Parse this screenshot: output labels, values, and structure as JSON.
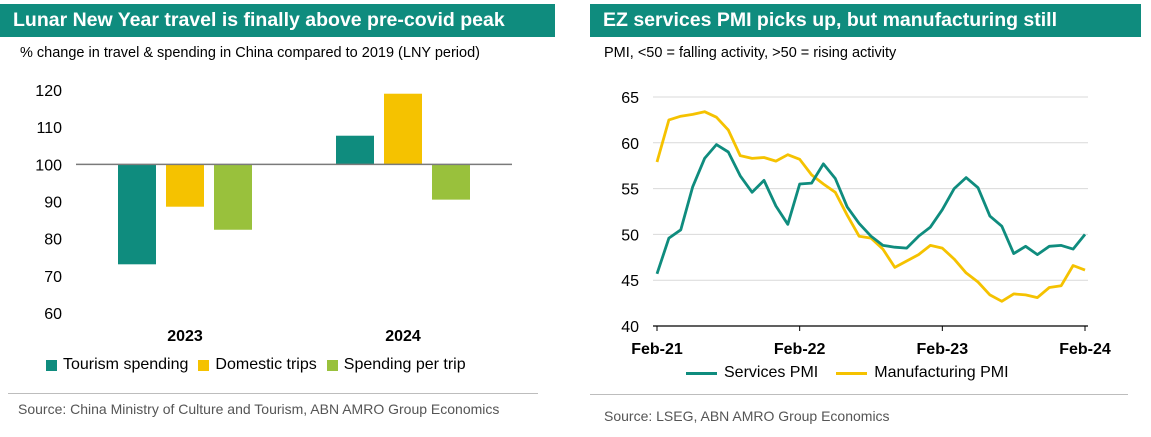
{
  "left": {
    "title": "Lunar New Year travel is finally above pre-covid peak",
    "subtitle": "% change in travel & spending in China compared to 2019 (LNY period)",
    "source": "Source: China Ministry of Culture and Tourism, ABN AMRO Group Economics",
    "colors": {
      "Tourism spending": "#0f8c7e",
      "Domestic trips": "#f5c200",
      "Spending per trip": "#99c13c"
    }
  },
  "right": {
    "title": "EZ services PMI picks up, but manufacturing still",
    "subtitle": "PMI, <50 = falling activity, >50 = rising activity",
    "source": "Source: LSEG, ABN AMRO Group Economics",
    "colors": {
      "Services PMI": "#0f8c7e",
      "Manufacturing PMI": "#f5c200"
    }
  },
  "chart_data": [
    {
      "type": "bar",
      "title": "Lunar New Year travel is finally above pre-covid peak",
      "subtitle": "% change in travel & spending in China compared to 2019 (LNY period)",
      "categories": [
        "2023",
        "2024"
      ],
      "baseline": 100,
      "ylim": [
        60,
        120
      ],
      "yticks": [
        60,
        70,
        80,
        90,
        100,
        110,
        120
      ],
      "grid": false,
      "legend": "bottom",
      "series": [
        {
          "name": "Tourism spending",
          "values": [
            73.1,
            107.7
          ]
        },
        {
          "name": "Domestic trips",
          "values": [
            88.6,
            119.0
          ]
        },
        {
          "name": "Spending per trip",
          "values": [
            82.4,
            90.5
          ]
        }
      ]
    },
    {
      "type": "line",
      "title": "EZ services PMI picks up, but manufacturing still",
      "subtitle": "PMI, <50 = falling activity, >50 = rising activity",
      "x": [
        "2021-02",
        "2021-03",
        "2021-04",
        "2021-05",
        "2021-06",
        "2021-07",
        "2021-08",
        "2021-09",
        "2021-10",
        "2021-11",
        "2021-12",
        "2022-01",
        "2022-02",
        "2022-03",
        "2022-04",
        "2022-05",
        "2022-06",
        "2022-07",
        "2022-08",
        "2022-09",
        "2022-10",
        "2022-11",
        "2022-12",
        "2023-01",
        "2023-02",
        "2023-03",
        "2023-04",
        "2023-05",
        "2023-06",
        "2023-07",
        "2023-08",
        "2023-09",
        "2023-10",
        "2023-11",
        "2023-12",
        "2024-01",
        "2024-02"
      ],
      "xticks": [
        "Feb-21",
        "Feb-22",
        "Feb-23",
        "Feb-24"
      ],
      "ylim": [
        40,
        65
      ],
      "yticks": [
        40,
        45,
        50,
        55,
        60,
        65
      ],
      "grid": true,
      "legend": "bottom",
      "series": [
        {
          "name": "Services PMI",
          "values": [
            45.7,
            49.6,
            50.5,
            55.2,
            58.3,
            59.8,
            59.0,
            56.4,
            54.6,
            55.9,
            53.1,
            51.1,
            55.5,
            55.6,
            57.7,
            56.1,
            53.0,
            51.2,
            49.8,
            48.8,
            48.6,
            48.5,
            49.8,
            50.8,
            52.7,
            55.0,
            56.2,
            55.1,
            52.0,
            50.9,
            47.9,
            48.7,
            47.8,
            48.7,
            48.8,
            48.4,
            50.0
          ]
        },
        {
          "name": "Manufacturing PMI",
          "values": [
            57.9,
            62.5,
            62.9,
            63.1,
            63.4,
            62.8,
            61.4,
            58.6,
            58.3,
            58.4,
            58.0,
            58.7,
            58.2,
            56.5,
            55.5,
            54.6,
            52.1,
            49.8,
            49.6,
            48.4,
            46.4,
            47.1,
            47.8,
            48.8,
            48.5,
            47.3,
            45.8,
            44.8,
            43.4,
            42.7,
            43.5,
            43.4,
            43.1,
            44.2,
            44.4,
            46.6,
            46.1
          ]
        }
      ]
    }
  ]
}
